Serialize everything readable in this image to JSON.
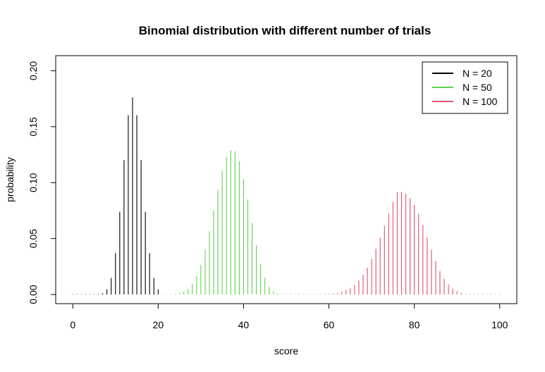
{
  "chart_data": {
    "type": "bar",
    "title": "Binomial distribution with different number of trials",
    "xlabel": "score",
    "ylabel": "probability",
    "xlim": [
      -4,
      104
    ],
    "ylim": [
      -0.0082,
      0.2135
    ],
    "xticks": [
      0,
      20,
      40,
      60,
      80,
      100
    ],
    "yticks": [
      0.0,
      0.05,
      0.1,
      0.15,
      0.2
    ],
    "ytick_labels": [
      "0.00",
      "0.05",
      "0.10",
      "0.15",
      "0.20"
    ],
    "grid": false,
    "legend_position": "top-right",
    "series": [
      {
        "name": "N = 20",
        "color": "#000000",
        "x": [
          0,
          1,
          2,
          3,
          4,
          5,
          6,
          7,
          8,
          9,
          10,
          11,
          12,
          13,
          14,
          15,
          16,
          17,
          18,
          19,
          20
        ],
        "values": [
          0.0,
          0.0,
          0.0,
          0.0,
          0.0,
          0.0,
          0.0002,
          0.0011,
          0.0046,
          0.0148,
          0.037,
          0.0739,
          0.1201,
          0.1602,
          0.1762,
          0.1602,
          0.1201,
          0.0739,
          0.037,
          0.0148,
          0.0046
        ]
      },
      {
        "name": "N = 50",
        "color": "#61D04F",
        "x": [
          20,
          21,
          22,
          23,
          24,
          25,
          26,
          27,
          28,
          29,
          30,
          31,
          32,
          33,
          34,
          35,
          36,
          37,
          38,
          39,
          40,
          41,
          42,
          43,
          44,
          45,
          46,
          47,
          48,
          49,
          50
        ],
        "values": [
          0.0,
          0.0,
          0.0001,
          0.0002,
          0.0005,
          0.0012,
          0.0025,
          0.005,
          0.0095,
          0.0165,
          0.0265,
          0.04,
          0.0565,
          0.075,
          0.0935,
          0.1105,
          0.123,
          0.129,
          0.128,
          0.119,
          0.103,
          0.085,
          0.064,
          0.044,
          0.027,
          0.015,
          0.007,
          0.003,
          0.0011,
          0.0003,
          0.0001
        ]
      },
      {
        "name": "N = 100",
        "color": "#DF536B",
        "x": [
          50,
          51,
          52,
          53,
          54,
          55,
          56,
          57,
          58,
          59,
          60,
          61,
          62,
          63,
          64,
          65,
          66,
          67,
          68,
          69,
          70,
          71,
          72,
          73,
          74,
          75,
          76,
          77,
          78,
          79,
          80,
          81,
          82,
          83,
          84,
          85,
          86,
          87,
          88,
          89,
          90,
          91,
          92,
          93,
          94,
          95,
          96,
          97,
          98,
          99,
          100
        ],
        "values": [
          0.0,
          0.0,
          0.0,
          0.0,
          0.0,
          0.0,
          0.0001,
          0.0001,
          0.0002,
          0.0003,
          0.0005,
          0.0008,
          0.0014,
          0.0023,
          0.0037,
          0.0058,
          0.0087,
          0.0126,
          0.0177,
          0.024,
          0.0318,
          0.0408,
          0.0508,
          0.0615,
          0.0723,
          0.0825,
          0.0913,
          0.0918,
          0.09,
          0.086,
          0.08,
          0.072,
          0.062,
          0.051,
          0.04,
          0.03,
          0.021,
          0.014,
          0.009,
          0.0052,
          0.0028,
          0.0014,
          0.0006,
          0.0002,
          0.0001,
          0.0,
          0.0,
          0.0,
          0.0,
          0.0,
          0.0
        ]
      }
    ]
  }
}
